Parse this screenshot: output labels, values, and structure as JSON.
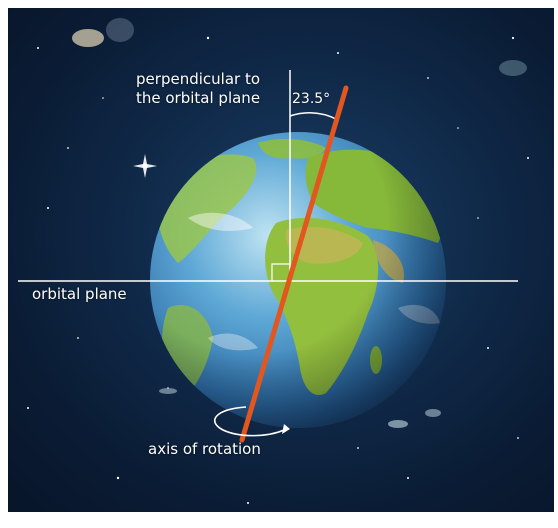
{
  "labels": {
    "perpendicular_line1": "perpendicular to",
    "perpendicular_line2": "the orbital plane",
    "angle": "23.5°",
    "orbital_plane": "orbital plane",
    "axis_of_rotation": "axis of rotation"
  },
  "colors": {
    "space": "#0d2240",
    "axis": "#e2561f",
    "guide_lines": "#ffffff",
    "ocean": "#3b8fd0",
    "land": "#8fbf3a"
  },
  "icons": {
    "rotation_arrow": "curved-rotation-arrow-icon",
    "right_angle": "right-angle-marker-icon",
    "angle_arc": "angle-arc-icon"
  }
}
